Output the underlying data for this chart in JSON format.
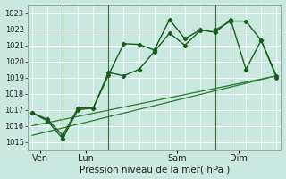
{
  "xlabel": "Pression niveau de la mer( hPa )",
  "bg_color": "#c8e8e0",
  "grid_color": "#b0d8d0",
  "line_color_dark": "#1a5c1a",
  "line_color_mid": "#2a7a2a",
  "ylim": [
    1014.5,
    1023.5
  ],
  "yticks": [
    1015,
    1016,
    1017,
    1018,
    1019,
    1020,
    1021,
    1022,
    1023
  ],
  "xlim": [
    -0.3,
    16.3
  ],
  "day_labels": [
    "Ven",
    "Lun",
    "Sam",
    "Dim"
  ],
  "day_positions": [
    0.5,
    3.5,
    9.5,
    13.5
  ],
  "vline_positions": [
    2,
    5,
    12
  ],
  "series1_x": [
    0,
    1,
    2,
    3,
    4,
    5,
    6,
    7,
    8,
    9,
    10,
    11,
    12,
    13,
    14,
    15,
    16
  ],
  "series1_y": [
    1016.8,
    1016.3,
    1015.2,
    1017.0,
    1017.1,
    1019.3,
    1019.1,
    1019.5,
    1020.6,
    1021.75,
    1021.0,
    1021.9,
    1021.95,
    1022.5,
    1022.5,
    1021.3,
    1019.0
  ],
  "series2_x": [
    0,
    1,
    2,
    3,
    4,
    5,
    6,
    7,
    8,
    9,
    10,
    11,
    12,
    13,
    14,
    15,
    16
  ],
  "series2_y": [
    1016.8,
    1016.4,
    1015.4,
    1017.1,
    1017.1,
    1019.15,
    1021.1,
    1021.05,
    1020.7,
    1022.6,
    1021.4,
    1021.95,
    1021.8,
    1022.6,
    1019.5,
    1021.3,
    1019.1
  ],
  "trend1_x": [
    0,
    16
  ],
  "trend1_y": [
    1016.0,
    1019.1
  ],
  "trend2_x": [
    0,
    16
  ],
  "trend2_y": [
    1015.4,
    1019.1
  ]
}
